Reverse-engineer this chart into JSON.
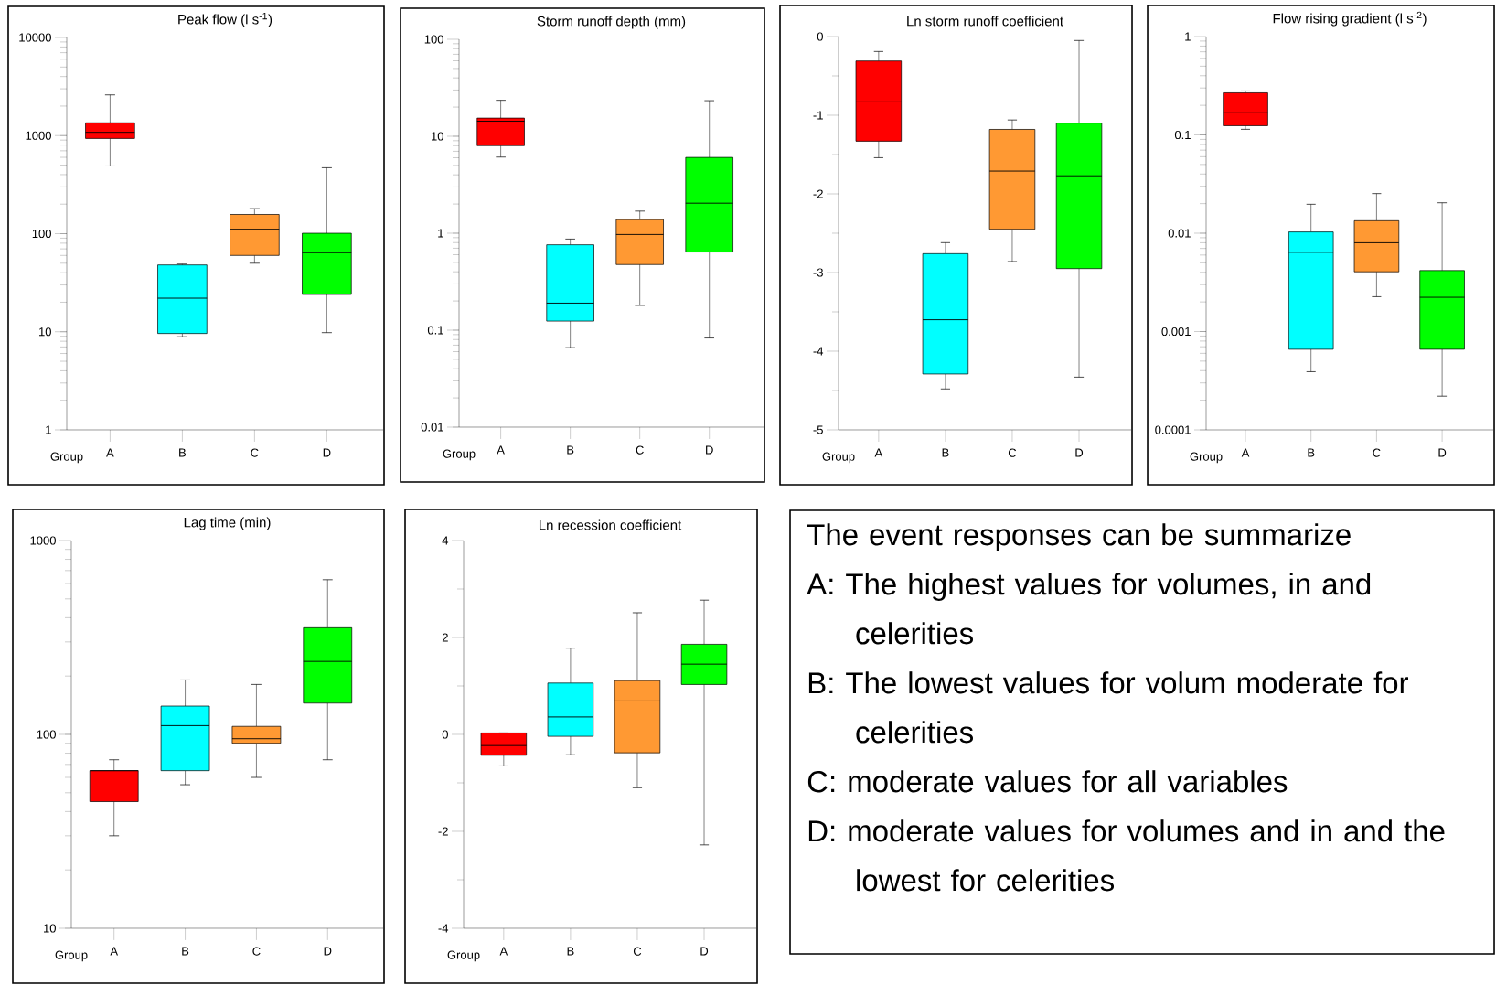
{
  "chart_data": [
    {
      "type": "box",
      "title": "Peak flow (l s$^{-1}$)",
      "xlabel": "Group",
      "categories": [
        "A",
        "B",
        "C",
        "D"
      ],
      "colors": [
        "#ff0000",
        "#00ffff",
        "#ff9933",
        "#00ff00"
      ],
      "log": true,
      "ylim": [
        1,
        10000
      ],
      "yticks": [
        1,
        10,
        100,
        1000,
        10000
      ],
      "boxes": [
        {
          "low": 490,
          "q1": 935,
          "median": 1080,
          "q3": 1350,
          "high": 2600
        },
        {
          "low": 8.9,
          "q1": 9.6,
          "median": 22,
          "q3": 48,
          "high": 49
        },
        {
          "low": 50,
          "q1": 60,
          "median": 111,
          "q3": 157,
          "high": 180
        },
        {
          "low": 9.8,
          "q1": 24,
          "median": 64,
          "q3": 101,
          "high": 470
        }
      ]
    },
    {
      "type": "box",
      "title": "Storm runoff depth (mm)",
      "xlabel": "Group",
      "categories": [
        "A",
        "B",
        "C",
        "D"
      ],
      "colors": [
        "#ff0000",
        "#00ffff",
        "#ff9933",
        "#00ff00"
      ],
      "log": true,
      "ylim": [
        0.01,
        100
      ],
      "yticks": [
        0.01,
        0.1,
        1,
        10,
        100
      ],
      "boxes": [
        {
          "low": 6.1,
          "q1": 8.0,
          "median": 14.3,
          "q3": 15.4,
          "high": 23.5
        },
        {
          "low": 0.066,
          "q1": 0.124,
          "median": 0.19,
          "q3": 0.76,
          "high": 0.87
        },
        {
          "low": 0.18,
          "q1": 0.475,
          "median": 0.97,
          "q3": 1.38,
          "high": 1.69
        },
        {
          "low": 0.083,
          "q1": 0.64,
          "median": 2.04,
          "q3": 6.05,
          "high": 23.3
        }
      ]
    },
    {
      "type": "box",
      "title": "Ln storm runoff coefficient",
      "xlabel": "Group",
      "categories": [
        "A",
        "B",
        "C",
        "D"
      ],
      "colors": [
        "#ff0000",
        "#00ffff",
        "#ff9933",
        "#00ff00"
      ],
      "ylim": [
        -5,
        0
      ],
      "yticks": [
        -5,
        -4,
        -3,
        -2,
        -1,
        0
      ],
      "boxes": [
        {
          "low": -1.54,
          "q1": -1.33,
          "median": -0.83,
          "q3": -0.31,
          "high": -0.19
        },
        {
          "low": -4.48,
          "q1": -4.29,
          "median": -3.6,
          "q3": -2.76,
          "high": -2.62
        },
        {
          "low": -2.86,
          "q1": -2.45,
          "median": -1.71,
          "q3": -1.18,
          "high": -1.06
        },
        {
          "low": -4.33,
          "q1": -2.95,
          "median": -1.77,
          "q3": -1.1,
          "high": -0.05
        }
      ]
    },
    {
      "type": "box",
      "title": "Flow rising gradient (l s$^{-2}$)",
      "xlabel": "Group",
      "categories": [
        "A",
        "B",
        "C",
        "D"
      ],
      "colors": [
        "#ff0000",
        "#00ffff",
        "#ff9933",
        "#00ff00"
      ],
      "log": true,
      "ylim": [
        0.0001,
        1
      ],
      "yticks": [
        0.0001,
        0.001,
        0.01,
        0.1,
        1
      ],
      "boxes": [
        {
          "low": 0.114,
          "q1": 0.124,
          "median": 0.17,
          "q3": 0.268,
          "high": 0.28
        },
        {
          "low": 0.00039,
          "q1": 0.00066,
          "median": 0.0064,
          "q3": 0.0103,
          "high": 0.0197
        },
        {
          "low": 0.00226,
          "q1": 0.00405,
          "median": 0.008,
          "q3": 0.0134,
          "high": 0.0253
        },
        {
          "low": 0.00022,
          "q1": 0.00066,
          "median": 0.00223,
          "q3": 0.00417,
          "high": 0.0204
        }
      ]
    },
    {
      "type": "box",
      "title": "Lag time (min)",
      "xlabel": "Group",
      "categories": [
        "A",
        "B",
        "C",
        "D"
      ],
      "colors": [
        "#ff0000",
        "#00ffff",
        "#ff9933",
        "#00ff00"
      ],
      "log": true,
      "ylim": [
        10,
        1000
      ],
      "yticks": [
        10,
        100,
        1000
      ],
      "boxes": [
        {
          "low": 30,
          "q1": 45,
          "median": 65,
          "q3": 65,
          "high": 74
        },
        {
          "low": 55,
          "q1": 65,
          "median": 111,
          "q3": 140,
          "high": 191
        },
        {
          "low": 60,
          "q1": 90,
          "median": 95,
          "q3": 110,
          "high": 181
        },
        {
          "low": 74,
          "q1": 145,
          "median": 238,
          "q3": 355,
          "high": 628
        }
      ]
    },
    {
      "type": "box",
      "title": "Ln recession coefficient",
      "xlabel": "Group",
      "categories": [
        "A",
        "B",
        "C",
        "D"
      ],
      "colors": [
        "#ff0000",
        "#00ffff",
        "#ff9933",
        "#00ff00"
      ],
      "ylim": [
        -4,
        4
      ],
      "yticks": [
        -4,
        -2,
        0,
        2,
        4
      ],
      "boxes": [
        {
          "low": -0.65,
          "q1": -0.43,
          "median": -0.23,
          "q3": 0.03,
          "high": 0.03
        },
        {
          "low": -0.42,
          "q1": -0.04,
          "median": 0.36,
          "q3": 1.06,
          "high": 1.78
        },
        {
          "low": -1.1,
          "q1": -0.38,
          "median": 0.69,
          "q3": 1.11,
          "high": 2.51
        },
        {
          "low": -2.28,
          "q1": 1.03,
          "median": 1.45,
          "q3": 1.86,
          "high": 2.77
        }
      ]
    },
    {
      "type": "other",
      "annotations": [
        "The event responses can be summarize",
        "A: The highest values for volumes, in and celerities",
        "B: The lowest values for volum moderate for celerities",
        "C: moderate values for all variables",
        "D: moderate values for volumes and in and the lowest for celerities"
      ]
    }
  ]
}
